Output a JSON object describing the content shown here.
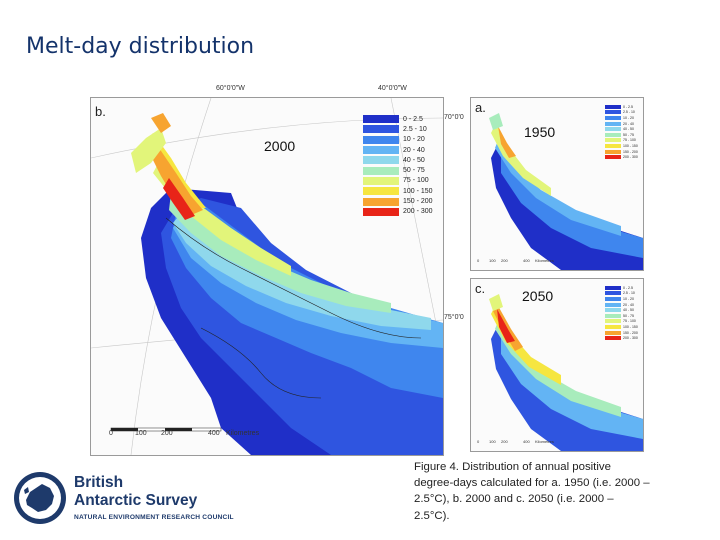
{
  "title": "Melt-day distribution",
  "map_b": {
    "panel_letter": "b.",
    "year": "2000",
    "coords": {
      "lon1": "60°0'0\"W",
      "lon2": "40°0'0\"W",
      "lat1": "70°0'0",
      "lat2": "75°0'0"
    },
    "scalebar": {
      "ticks": [
        "0",
        "100",
        "200",
        "400"
      ],
      "unit": "Kilometres"
    }
  },
  "map_a": {
    "panel_letter": "a.",
    "year": "1950"
  },
  "map_c": {
    "panel_letter": "c.",
    "year": "2050"
  },
  "legend": [
    {
      "label": "0 - 2.5",
      "color": "#1f2fc8"
    },
    {
      "label": "2.5 - 10",
      "color": "#2f55e0"
    },
    {
      "label": "10 - 20",
      "color": "#3f86ee"
    },
    {
      "label": "20 - 40",
      "color": "#63b4f4"
    },
    {
      "label": "40 - 50",
      "color": "#8fd8ec"
    },
    {
      "label": "50 - 75",
      "color": "#a8ecbc"
    },
    {
      "label": "75 - 100",
      "color": "#e2f57a"
    },
    {
      "label": "100 - 150",
      "color": "#f6e640"
    },
    {
      "label": "150 - 200",
      "color": "#f7a430"
    },
    {
      "label": "200 - 300",
      "color": "#e82418"
    }
  ],
  "small_scalebar": {
    "ticks": [
      "0",
      "100",
      "200",
      "400"
    ],
    "unit": "Kilometres"
  },
  "caption": "Figure 4.  Distribution of annual positive degree-days calculated for a. 1950 (i.e. 2000 – 2.5°C), b. 2000 and c. 2050 (i.e. 2000 – 2.5°C).",
  "logo": {
    "line1": "British",
    "line2": "Antarctic Survey",
    "line3": "NATURAL ENVIRONMENT RESEARCH COUNCIL",
    "color": "#1e3a6b"
  }
}
